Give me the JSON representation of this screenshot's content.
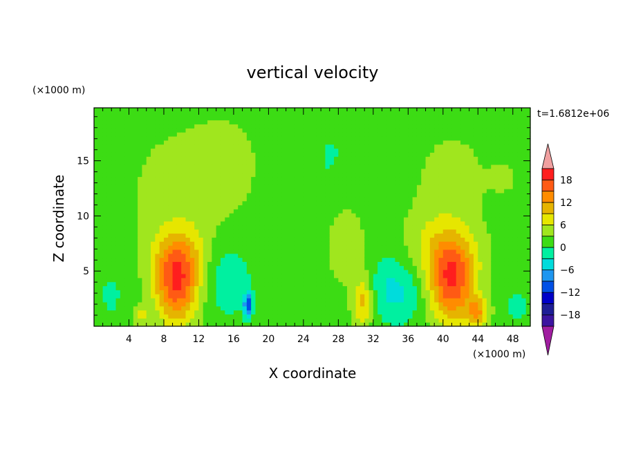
{
  "chart_data": {
    "type": "heatmap",
    "title": "vertical velocity",
    "xlabel": "X coordinate",
    "ylabel": "Z coordinate",
    "x_unit": "(×1000 m)",
    "y_unit": "(×1000 m)",
    "time_label": "t=1.6812e+06",
    "xlim": [
      0,
      50
    ],
    "ylim": [
      0,
      19.8
    ],
    "x_ticks": [
      4,
      8,
      12,
      16,
      20,
      24,
      28,
      32,
      36,
      40,
      44,
      48
    ],
    "y_ticks": [
      5,
      10,
      15
    ],
    "grid": false,
    "legend_position": "right",
    "colorbar": {
      "levels": [
        -21,
        -18,
        -15,
        -12,
        -9,
        -6,
        -3,
        0,
        3,
        6,
        9,
        12,
        15,
        18,
        21
      ],
      "labels": [
        -18,
        -12,
        -6,
        0,
        6,
        12,
        18
      ],
      "colors": [
        "#a01ea0",
        "#3c14a0",
        "#1e1e96",
        "#0000c8",
        "#0050e6",
        "#1e96f0",
        "#00dcdc",
        "#00f0a0",
        "#3cdc14",
        "#a0e61e",
        "#e6e600",
        "#e6b400",
        "#ff8c00",
        "#ff5a14",
        "#ff1e1e",
        "#f0a0a0"
      ]
    },
    "background_value": 1.5,
    "features": [
      {
        "x": 9.5,
        "z": 3.8,
        "amp": 15,
        "sx": 1.8,
        "sz": 2.6
      },
      {
        "x": 9.8,
        "z": 6.5,
        "amp": 5,
        "sx": 2.5,
        "sz": 2.0
      },
      {
        "x": 41,
        "z": 3.8,
        "amp": 15,
        "sx": 1.8,
        "sz": 2.6
      },
      {
        "x": 41,
        "z": 6.5,
        "amp": 5,
        "sx": 2.6,
        "sz": 2.0
      },
      {
        "x": 44,
        "z": 1.3,
        "amp": 9,
        "sx": 0.9,
        "sz": 1.0
      },
      {
        "x": 5.3,
        "z": 1.0,
        "amp": 5,
        "sx": 0.6,
        "sz": 0.7
      },
      {
        "x": 30.8,
        "z": 2.2,
        "amp": 8,
        "sx": 0.8,
        "sz": 1.6
      },
      {
        "x": 15,
        "z": 4.5,
        "amp": -4,
        "sx": 2.0,
        "sz": 2.4
      },
      {
        "x": 17.6,
        "z": 2.0,
        "amp": -12,
        "sx": 0.3,
        "sz": 0.8
      },
      {
        "x": 35,
        "z": 3.2,
        "amp": -5,
        "sx": 1.9,
        "sz": 2.0
      },
      {
        "x": 2.0,
        "z": 3.0,
        "amp": -1.8,
        "sx": 1.6,
        "sz": 2.6
      },
      {
        "x": 48.5,
        "z": 1.8,
        "amp": -2,
        "sx": 1.2,
        "sz": 1.6
      },
      {
        "x": 21.5,
        "z": 1.5,
        "amp": -1.2,
        "sx": 2.5,
        "sz": 2.0
      },
      {
        "x": 10.5,
        "z": 12.5,
        "amp": 2.8,
        "sx": 4.8,
        "sz": 4.3
      },
      {
        "x": 15.5,
        "z": 15.0,
        "amp": 2.6,
        "sx": 2.5,
        "sz": 2.5
      },
      {
        "x": 26,
        "z": 14.8,
        "amp": -2.0,
        "sx": 4.5,
        "sz": 3.3
      },
      {
        "x": 28.8,
        "z": 8.0,
        "amp": 2.8,
        "sx": 2.0,
        "sz": 3.6
      },
      {
        "x": 41,
        "z": 13,
        "amp": 3.0,
        "sx": 3.0,
        "sz": 3.3
      },
      {
        "x": 38,
        "z": 8,
        "amp": 2.4,
        "sx": 2.2,
        "sz": 2.2
      },
      {
        "x": 24.5,
        "z": 15.5,
        "amp": 2.5,
        "sx": 1.0,
        "sz": 1.0
      },
      {
        "x": 47,
        "z": 13.5,
        "amp": 2.3,
        "sx": 1.2,
        "sz": 1.0
      },
      {
        "x": 33,
        "z": 4,
        "amp": -1.5,
        "sx": 1.2,
        "sz": 2.0
      }
    ]
  }
}
